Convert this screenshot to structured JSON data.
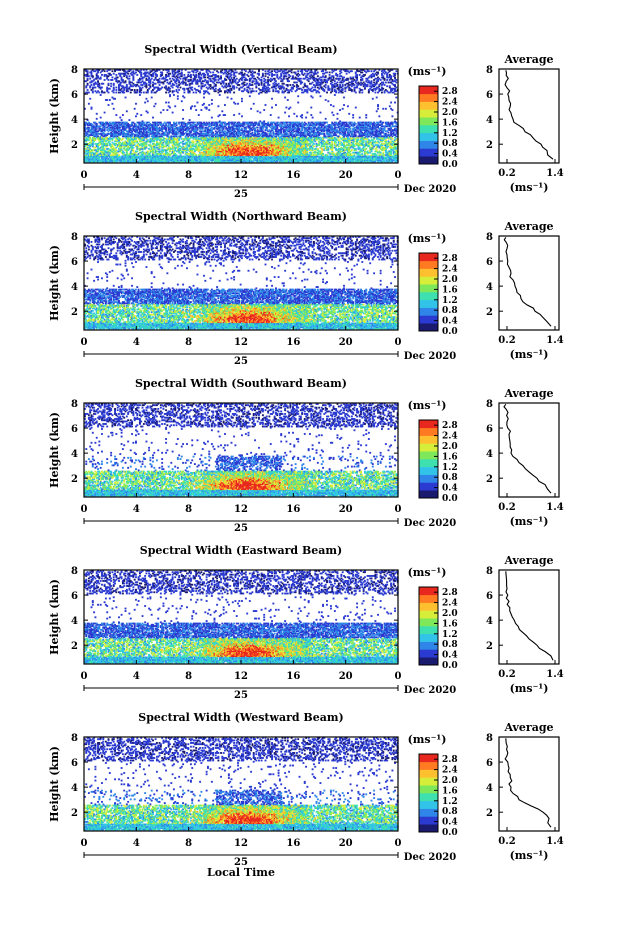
{
  "figure": {
    "x_axis_label": "Local Time",
    "date_label": "Dec 2020",
    "day_label": "25",
    "colorbar_unit": "(ms⁻¹)",
    "avg_title": "Average",
    "avg_xlabel": "(ms⁻¹)",
    "panel_ylabel": "Height (km)",
    "colorscale": [
      "#1a1a6e",
      "#2b3bd1",
      "#2f86e8",
      "#31c3e8",
      "#3ee0b0",
      "#7fe85a",
      "#d6ee3a",
      "#ffc030",
      "#ff7a20",
      "#e8281e"
    ]
  },
  "chart_data": [
    {
      "type": "heatmap",
      "title": "Spectral Width (Vertical Beam)",
      "xlabel": "",
      "ylabel": "Height (km)",
      "x_ticks": [
        "0",
        "4",
        "8",
        "12",
        "16",
        "20",
        "0"
      ],
      "y_ticks": [
        "2",
        "4",
        "6",
        "8"
      ],
      "xlim": [
        0,
        24
      ],
      "ylim": [
        0.5,
        8
      ],
      "colorbar_ticks": [
        "0.0",
        "0.4",
        "0.8",
        "1.2",
        "1.6",
        "2.0",
        "2.4",
        "2.8"
      ],
      "clim": [
        0,
        3.0
      ],
      "average": {
        "title": "Average",
        "xlabel": "(ms⁻¹)",
        "x_ticks": [
          "0.2",
          "1.4"
        ],
        "y_ticks": [
          "2",
          "4",
          "6",
          "8"
        ],
        "xlim": [
          0,
          1.5
        ],
        "ylim": [
          0.5,
          8
        ],
        "height": [
          0.8,
          1.5,
          2.0,
          2.5,
          3.0,
          3.5,
          4.0,
          4.5,
          5.0,
          5.5,
          6.0,
          6.5,
          7.0,
          7.5,
          7.9
        ],
        "value": [
          1.35,
          1.2,
          1.05,
          0.85,
          0.65,
          0.5,
          0.35,
          0.3,
          0.28,
          0.25,
          0.22,
          0.2,
          0.18,
          0.18,
          0.17
        ]
      }
    },
    {
      "type": "heatmap",
      "title": "Spectral Width (Northward Beam)",
      "xlabel": "",
      "ylabel": "Height (km)",
      "x_ticks": [
        "0",
        "4",
        "8",
        "12",
        "16",
        "20",
        "0"
      ],
      "y_ticks": [
        "2",
        "4",
        "6",
        "8"
      ],
      "xlim": [
        0,
        24
      ],
      "ylim": [
        0.5,
        8
      ],
      "colorbar_ticks": [
        "0.0",
        "0.4",
        "0.8",
        "1.2",
        "1.6",
        "2.0",
        "2.4",
        "2.8"
      ],
      "clim": [
        0,
        3.0
      ],
      "average": {
        "title": "Average",
        "xlabel": "(ms⁻¹)",
        "x_ticks": [
          "0.2",
          "1.4"
        ],
        "y_ticks": [
          "2",
          "4",
          "6",
          "8"
        ],
        "xlim": [
          0,
          1.5
        ],
        "ylim": [
          0.5,
          8
        ],
        "height": [
          0.8,
          1.5,
          2.0,
          2.5,
          3.0,
          3.5,
          4.0,
          4.5,
          5.0,
          5.5,
          6.0,
          6.5,
          7.0,
          7.5,
          7.9
        ],
        "value": [
          1.3,
          1.1,
          0.9,
          0.7,
          0.55,
          0.45,
          0.4,
          0.35,
          0.3,
          0.25,
          0.22,
          0.2,
          0.2,
          0.18,
          0.17
        ]
      }
    },
    {
      "type": "heatmap",
      "title": "Spectral Width (Southward Beam)",
      "xlabel": "",
      "ylabel": "Height (km)",
      "x_ticks": [
        "0",
        "4",
        "8",
        "12",
        "16",
        "20",
        "0"
      ],
      "y_ticks": [
        "2",
        "4",
        "6",
        "8"
      ],
      "xlim": [
        0,
        24
      ],
      "ylim": [
        0.5,
        8
      ],
      "colorbar_ticks": [
        "0.0",
        "0.4",
        "0.8",
        "1.2",
        "1.6",
        "2.0",
        "2.4",
        "2.8"
      ],
      "clim": [
        0,
        3.0
      ],
      "average": {
        "title": "Average",
        "xlabel": "(ms⁻¹)",
        "x_ticks": [
          "0.2",
          "1.4"
        ],
        "y_ticks": [
          "2",
          "4",
          "6",
          "8"
        ],
        "xlim": [
          0,
          1.5
        ],
        "ylim": [
          0.5,
          8
        ],
        "height": [
          0.8,
          1.5,
          2.0,
          2.5,
          3.0,
          3.5,
          4.0,
          4.5,
          5.0,
          5.5,
          6.0,
          6.5,
          7.0,
          7.5,
          7.9
        ],
        "value": [
          1.3,
          1.15,
          0.95,
          0.75,
          0.6,
          0.45,
          0.3,
          0.28,
          0.27,
          0.25,
          0.22,
          0.2,
          0.19,
          0.18,
          0.17
        ]
      }
    },
    {
      "type": "heatmap",
      "title": "Spectral Width (Eastward Beam)",
      "xlabel": "",
      "ylabel": "Height (km)",
      "x_ticks": [
        "0",
        "4",
        "8",
        "12",
        "16",
        "20",
        "0"
      ],
      "y_ticks": [
        "2",
        "4",
        "6",
        "8"
      ],
      "xlim": [
        0,
        24
      ],
      "ylim": [
        0.5,
        8
      ],
      "colorbar_ticks": [
        "0.0",
        "0.4",
        "0.8",
        "1.2",
        "1.6",
        "2.0",
        "2.4",
        "2.8"
      ],
      "clim": [
        0,
        3.0
      ],
      "average": {
        "title": "Average",
        "xlabel": "(ms⁻¹)",
        "x_ticks": [
          "0.2",
          "1.4"
        ],
        "y_ticks": [
          "2",
          "4",
          "6",
          "8"
        ],
        "xlim": [
          0,
          1.5
        ],
        "ylim": [
          0.5,
          8
        ],
        "height": [
          0.8,
          1.5,
          2.0,
          2.5,
          3.0,
          3.5,
          4.0,
          4.5,
          5.0,
          5.5,
          6.0,
          6.5,
          7.0,
          7.5,
          7.9
        ],
        "value": [
          1.35,
          1.15,
          0.95,
          0.75,
          0.6,
          0.48,
          0.38,
          0.3,
          0.27,
          0.25,
          0.22,
          0.2,
          0.19,
          0.18,
          0.17
        ]
      }
    },
    {
      "type": "heatmap",
      "title": "Spectral Width (Westward Beam)",
      "xlabel": "Local Time",
      "ylabel": "Height (km)",
      "x_ticks": [
        "0",
        "4",
        "8",
        "12",
        "16",
        "20",
        "0"
      ],
      "y_ticks": [
        "2",
        "4",
        "6",
        "8"
      ],
      "xlim": [
        0,
        24
      ],
      "ylim": [
        0.5,
        8
      ],
      "colorbar_ticks": [
        "0.0",
        "0.4",
        "0.8",
        "1.2",
        "1.6",
        "2.0",
        "2.4",
        "2.8"
      ],
      "clim": [
        0,
        3.0
      ],
      "average": {
        "title": "Average",
        "xlabel": "(ms⁻¹)",
        "x_ticks": [
          "0.2",
          "1.4"
        ],
        "y_ticks": [
          "2",
          "4",
          "6",
          "8"
        ],
        "xlim": [
          0,
          1.5
        ],
        "ylim": [
          0.5,
          8
        ],
        "height": [
          0.8,
          1.5,
          2.0,
          2.5,
          3.0,
          3.5,
          4.0,
          4.5,
          5.0,
          5.5,
          6.0,
          6.5,
          7.0,
          7.5,
          7.9
        ],
        "value": [
          1.3,
          1.25,
          1.1,
          0.8,
          0.5,
          0.35,
          0.3,
          0.32,
          0.28,
          0.25,
          0.22,
          0.2,
          0.19,
          0.18,
          0.17
        ]
      }
    }
  ]
}
